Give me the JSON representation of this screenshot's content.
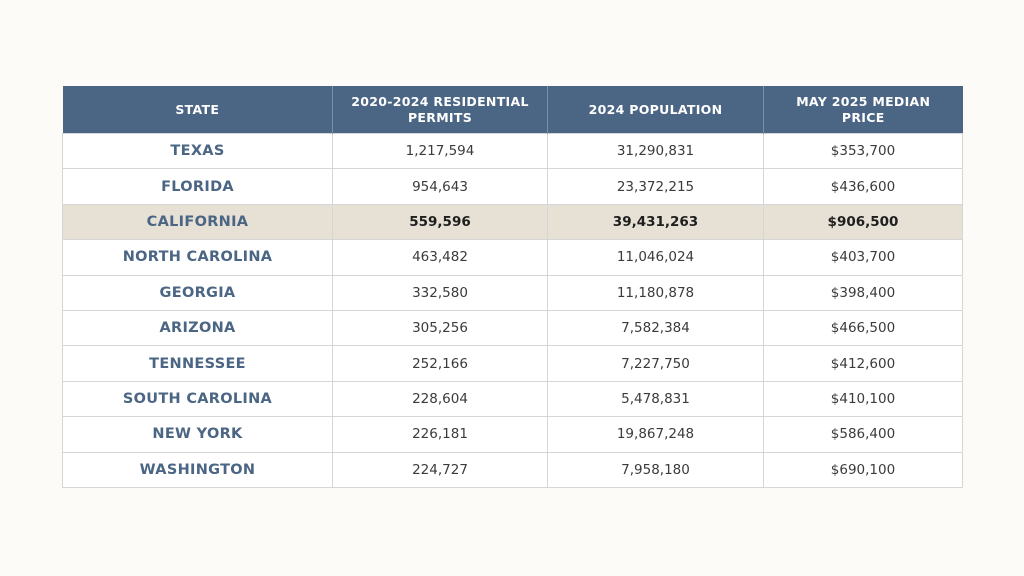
{
  "table": {
    "headers": [
      "STATE",
      "2020-2024 RESIDENTIAL PERMITS",
      "2024 POPULATION",
      "MAY 2025 MEDIAN PRICE"
    ],
    "rows": [
      {
        "state": "TEXAS",
        "permits": "1,217,594",
        "population": "31,290,831",
        "price": "$353,700"
      },
      {
        "state": "FLORIDA",
        "permits": "954,643",
        "population": "23,372,215",
        "price": "$436,600"
      },
      {
        "state": "CALIFORNIA",
        "permits": "559,596",
        "population": "39,431,263",
        "price": "$906,500"
      },
      {
        "state": "NORTH CAROLINA",
        "permits": "463,482",
        "population": "11,046,024",
        "price": "$403,700"
      },
      {
        "state": "GEORGIA",
        "permits": "332,580",
        "population": "11,180,878",
        "price": "$398,400"
      },
      {
        "state": "ARIZONA",
        "permits": "305,256",
        "population": "7,582,384",
        "price": "$466,500"
      },
      {
        "state": "TENNESSEE",
        "permits": "252,166",
        "population": "7,227,750",
        "price": "$412,600"
      },
      {
        "state": "SOUTH CAROLINA",
        "permits": "228,604",
        "population": "5,478,831",
        "price": "$410,100"
      },
      {
        "state": "NEW YORK",
        "permits": "226,181",
        "population": "19,867,248",
        "price": "$586,400"
      },
      {
        "state": "WASHINGTON",
        "permits": "224,727",
        "population": "7,958,180",
        "price": "$690,100"
      }
    ]
  },
  "colors": {
    "header_bg": "#4b6584",
    "highlight_bg": "#e7e0d4",
    "state_text": "#4b6584",
    "page_bg": "#fdfbf7"
  }
}
